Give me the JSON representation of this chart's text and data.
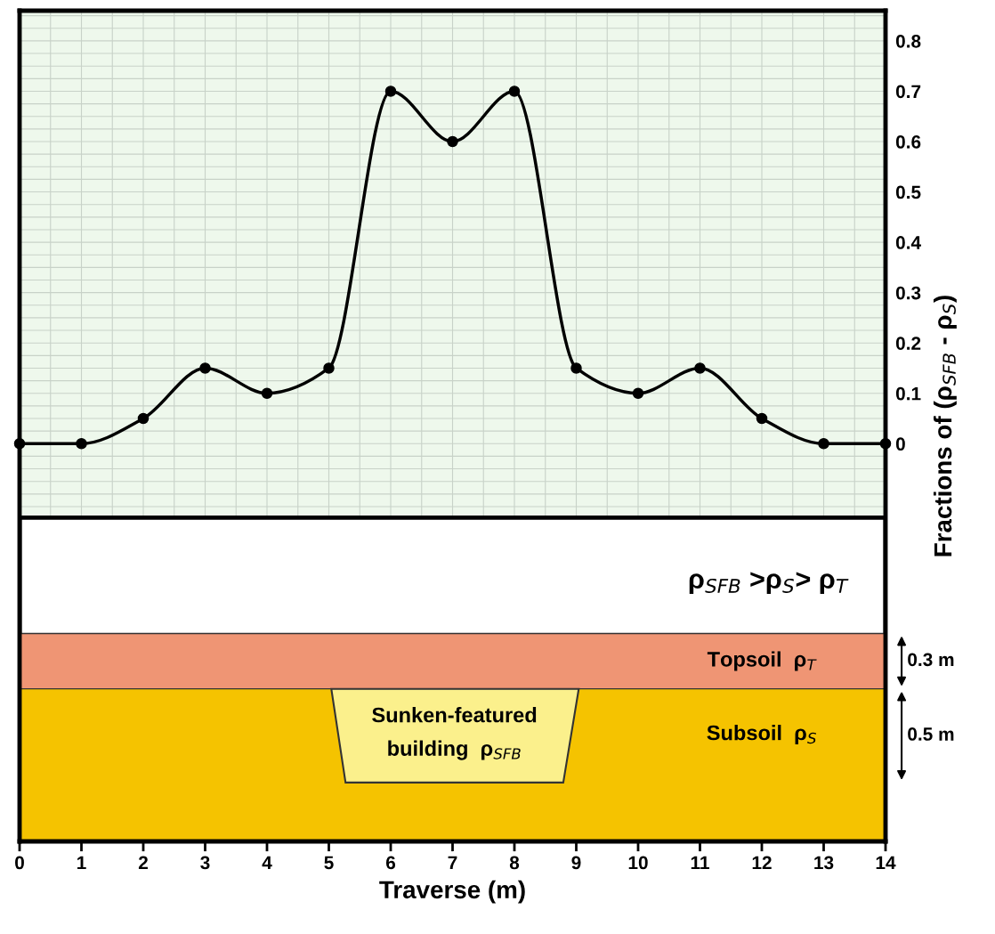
{
  "chart_data": {
    "type": "line",
    "xlabel": "Traverse (m)",
    "ylabel": "Fractions of (ρ$_{SFB}$ - ρ$_{S}$)",
    "x": [
      0,
      1,
      2,
      3,
      4,
      5,
      6,
      7,
      8,
      9,
      10,
      11,
      12,
      13,
      14
    ],
    "series": [
      {
        "color": "#000000",
        "values": [
          0,
          0,
          0.05,
          0.15,
          0.1,
          0.15,
          0.7,
          0.6,
          0.7,
          0.15,
          0.1,
          0.15,
          0.05,
          0,
          0
        ]
      }
    ],
    "xlim": [
      0,
      14
    ],
    "xticks": [
      0,
      1,
      2,
      3,
      4,
      5,
      6,
      7,
      8,
      9,
      10,
      11,
      12,
      13,
      14
    ],
    "ylim": [
      -0.79,
      0.86
    ],
    "yticks": [
      0,
      0.1,
      0.2,
      0.3,
      0.4,
      0.5,
      0.6,
      0.7,
      0.8
    ],
    "grid": true,
    "marker": "circle",
    "line_style": "solid",
    "annotations": [
      "ρ$_{SFB}$ >ρ$_{S}$> ρ$_{T}$",
      "Topsoil  ρ$_{T}$",
      "Subsoil  ρ$_{S}$",
      "Sunken-featured\nbuilding  ρ$_{SFB}$",
      "0.3 m",
      "0.5 m"
    ]
  }
}
